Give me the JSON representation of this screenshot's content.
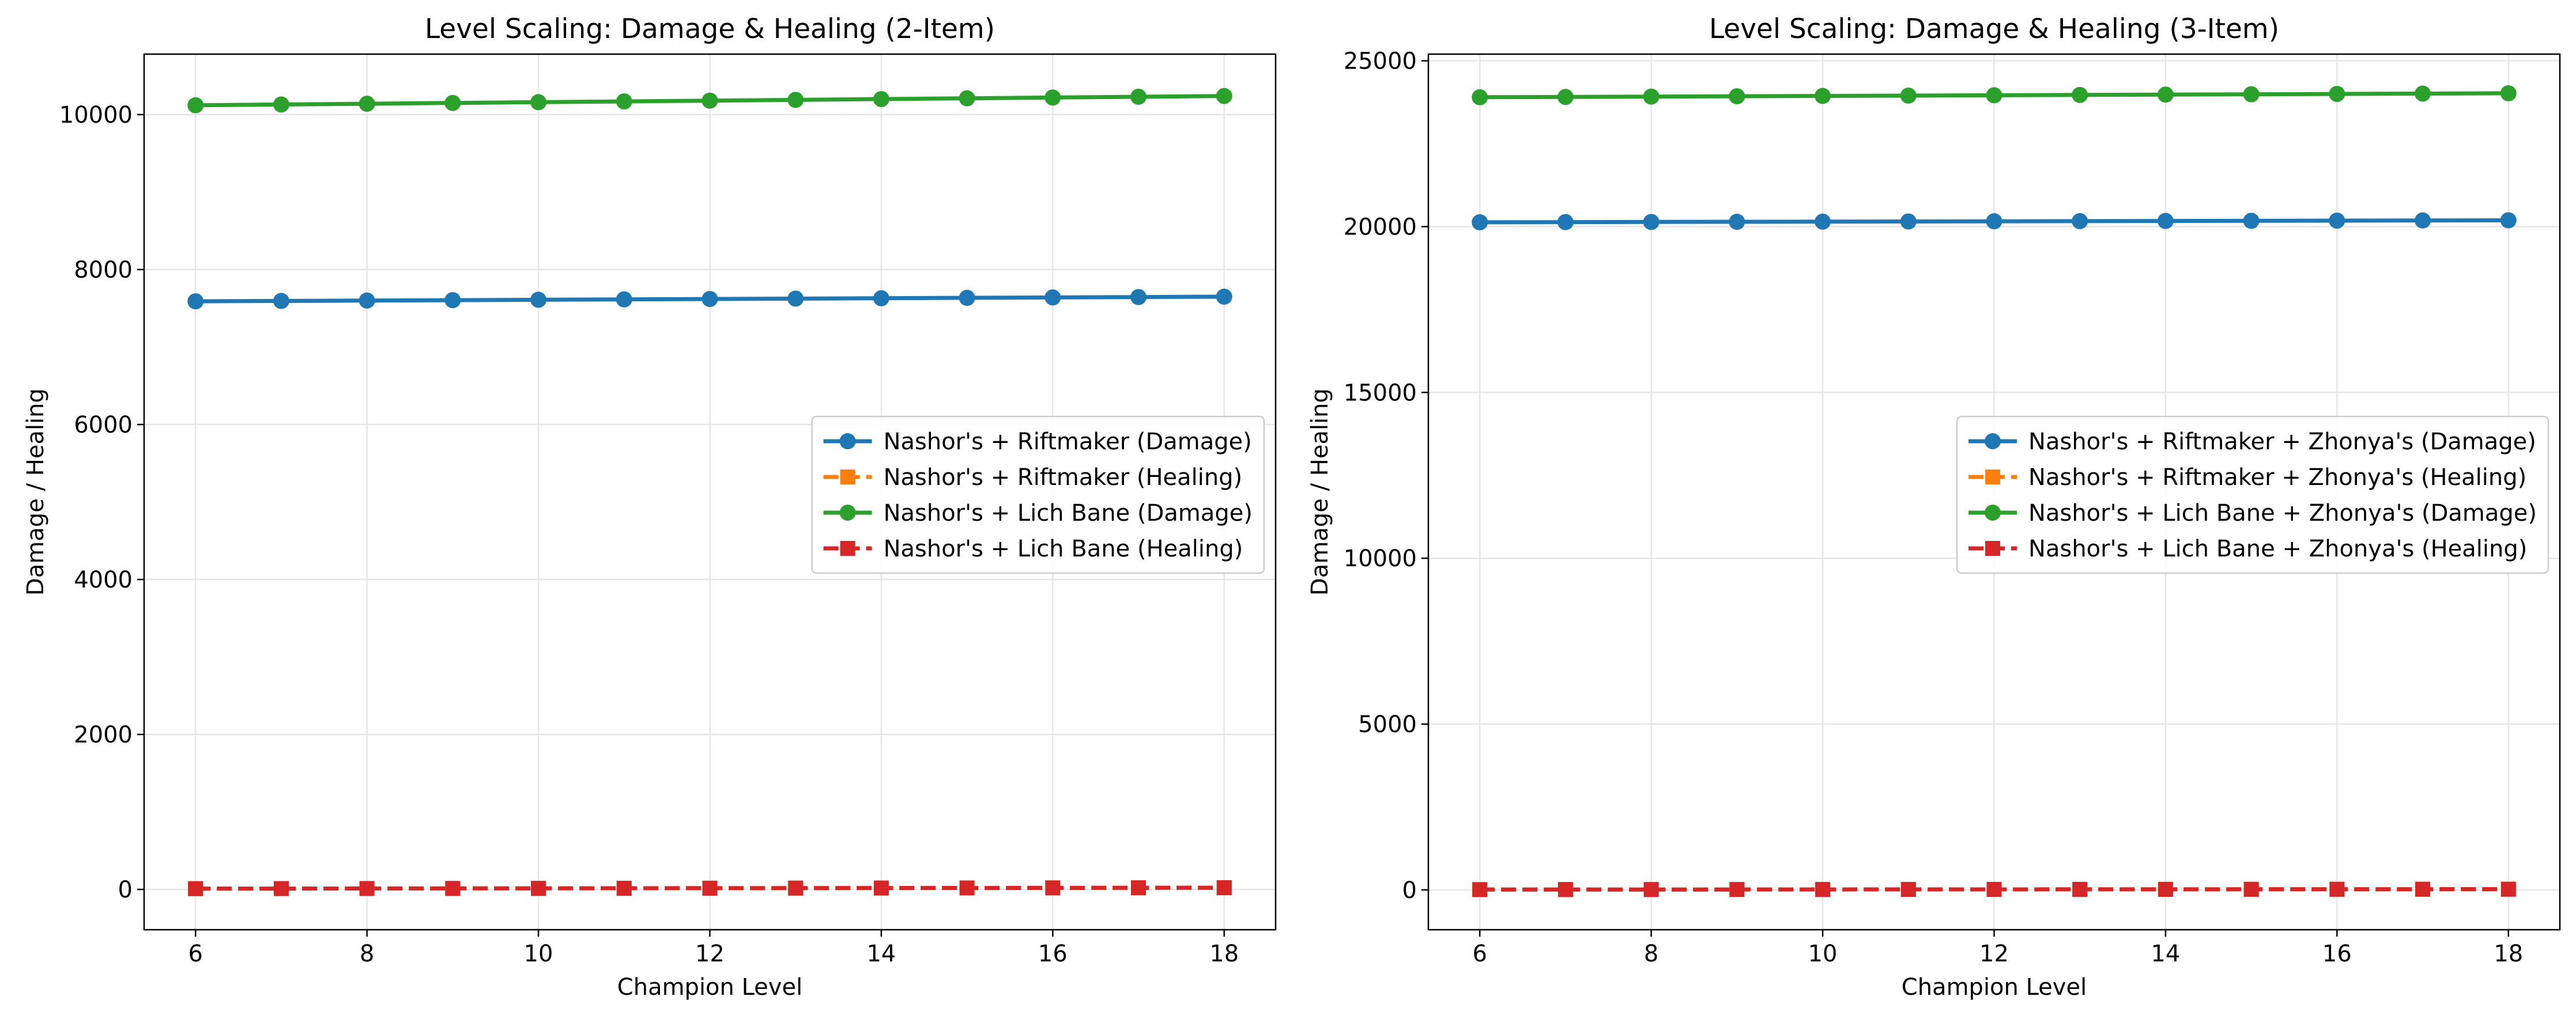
{
  "chart_data": [
    {
      "type": "line",
      "title": "Level Scaling: Damage & Healing (2-Item)",
      "xlabel": "Champion Level",
      "ylabel": "Damage / Healing",
      "x": [
        6,
        7,
        8,
        9,
        10,
        11,
        12,
        13,
        14,
        15,
        16,
        17,
        18
      ],
      "xticks": [
        6,
        8,
        10,
        12,
        14,
        16,
        18
      ],
      "yticks": [
        0,
        2000,
        4000,
        6000,
        8000,
        10000
      ],
      "xlim": [
        5.4,
        18.6
      ],
      "ylim": [
        -520,
        10780
      ],
      "grid": true,
      "legend": "center-right",
      "series": [
        {
          "name": "Nashor's + Riftmaker (Damage)",
          "color": "#1f77b4",
          "marker": "circle",
          "dash": false,
          "values": [
            7590,
            7595,
            7600,
            7605,
            7610,
            7615,
            7620,
            7625,
            7630,
            7635,
            7640,
            7645,
            7650
          ]
        },
        {
          "name": "Nashor's + Riftmaker (Healing)",
          "color": "#ff7f0e",
          "marker": "square",
          "dash": true,
          "values": [
            10,
            11,
            12,
            13,
            14,
            15,
            16,
            17,
            18,
            19,
            20,
            21,
            22
          ]
        },
        {
          "name": "Nashor's + Lich Bane (Damage)",
          "color": "#2ca02c",
          "marker": "circle",
          "dash": false,
          "values": [
            10120,
            10130,
            10140,
            10150,
            10160,
            10170,
            10180,
            10190,
            10200,
            10210,
            10220,
            10230,
            10240
          ]
        },
        {
          "name": "Nashor's + Lich Bane (Healing)",
          "color": "#d62728",
          "marker": "square",
          "dash": true,
          "values": [
            10,
            11,
            12,
            13,
            14,
            15,
            16,
            17,
            18,
            19,
            20,
            21,
            22
          ]
        }
      ]
    },
    {
      "type": "line",
      "title": "Level Scaling: Damage & Healing (3-Item)",
      "xlabel": "Champion Level",
      "ylabel": "Damage / Healing",
      "x": [
        6,
        7,
        8,
        9,
        10,
        11,
        12,
        13,
        14,
        15,
        16,
        17,
        18
      ],
      "xticks": [
        6,
        8,
        10,
        12,
        14,
        16,
        18
      ],
      "yticks": [
        0,
        5000,
        10000,
        15000,
        20000,
        25000
      ],
      "xlim": [
        5.4,
        18.6
      ],
      "ylim": [
        -1200,
        25200
      ],
      "grid": true,
      "legend": "center-right",
      "series": [
        {
          "name": "Nashor's + Riftmaker + Zhonya's (Damage)",
          "color": "#1f77b4",
          "marker": "circle",
          "dash": false,
          "values": [
            20130,
            20135,
            20140,
            20145,
            20150,
            20155,
            20160,
            20165,
            20170,
            20175,
            20180,
            20185,
            20190
          ]
        },
        {
          "name": "Nashor's + Riftmaker + Zhonya's (Healing)",
          "color": "#ff7f0e",
          "marker": "square",
          "dash": true,
          "values": [
            10,
            11,
            12,
            13,
            14,
            15,
            16,
            17,
            18,
            19,
            20,
            21,
            22
          ]
        },
        {
          "name": "Nashor's + Lich Bane + Zhonya's (Damage)",
          "color": "#2ca02c",
          "marker": "circle",
          "dash": false,
          "values": [
            23900,
            23910,
            23920,
            23930,
            23940,
            23950,
            23960,
            23970,
            23980,
            23990,
            24000,
            24010,
            24020
          ]
        },
        {
          "name": "Nashor's + Lich Bane + Zhonya's (Healing)",
          "color": "#d62728",
          "marker": "square",
          "dash": true,
          "values": [
            10,
            11,
            12,
            13,
            14,
            15,
            16,
            17,
            18,
            19,
            20,
            21,
            22
          ]
        }
      ]
    }
  ]
}
